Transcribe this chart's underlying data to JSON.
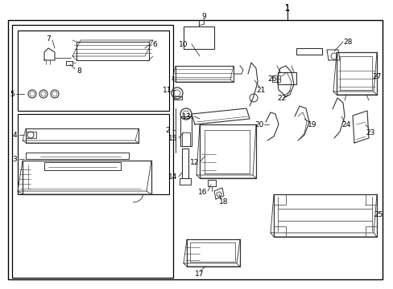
{
  "bg_color": "#ffffff",
  "border_color": "#000000",
  "line_color": "#333333",
  "text_color": "#000000",
  "fig_width": 4.89,
  "fig_height": 3.6,
  "dpi": 100
}
